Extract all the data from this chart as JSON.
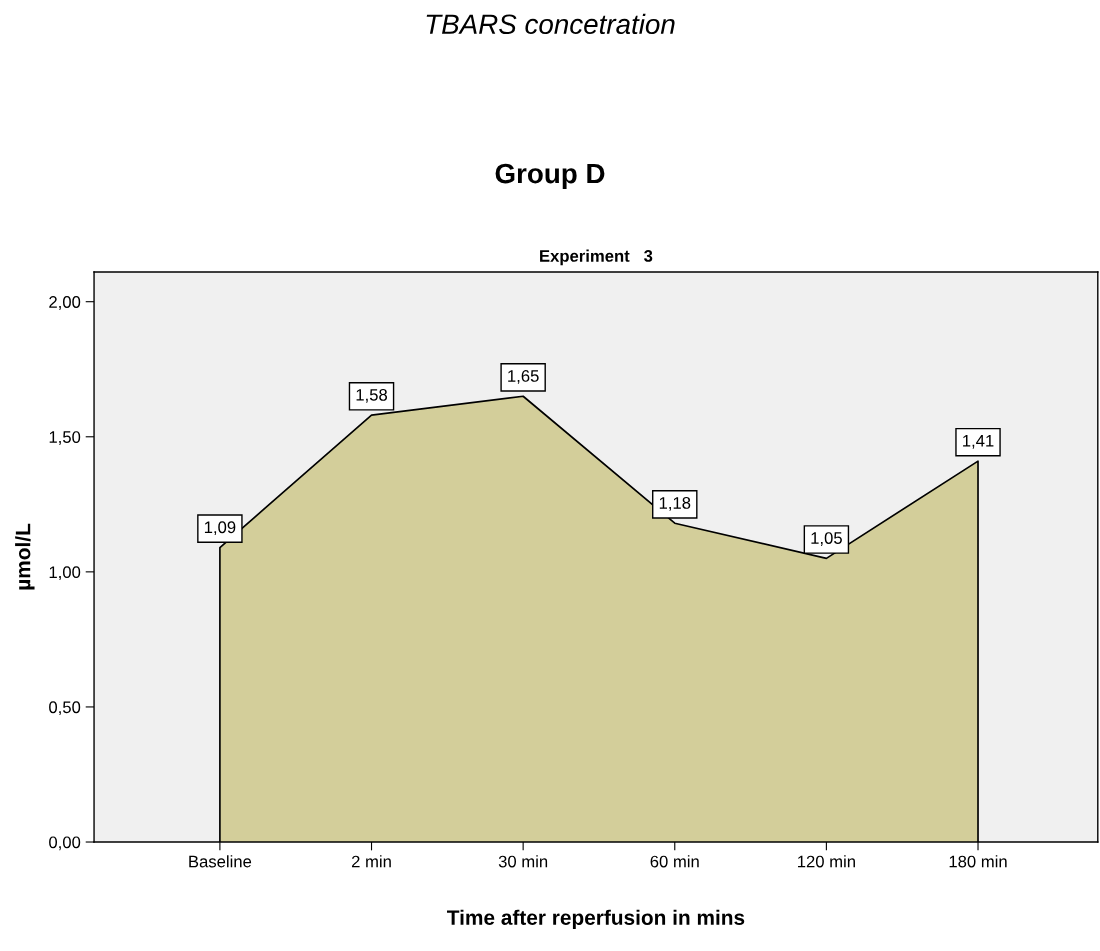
{
  "chart_data": {
    "type": "area",
    "title": "TBARS concetration",
    "subtitle": "Group D",
    "annotations": [
      "Experiment   3"
    ],
    "xlabel": "Time after reperfusion in mins",
    "ylabel": "µmol/L",
    "categories": [
      "Baseline",
      "2 min",
      "30 min",
      "60 min",
      "120 min",
      "180 min"
    ],
    "series": [
      {
        "color": "#d3ce9a",
        "values": [
          1.09,
          1.58,
          1.65,
          1.18,
          1.05,
          1.41
        ],
        "value_labels": [
          "1,09",
          "1,58",
          "1,65",
          "1,18",
          "1,05",
          "1,41"
        ]
      }
    ],
    "ylim": [
      0,
      2.11
    ],
    "yticks": [
      {
        "value": 0,
        "label": "0,00"
      },
      {
        "value": 0.5,
        "label": "0,50"
      },
      {
        "value": 1.0,
        "label": "1,00"
      },
      {
        "value": 1.5,
        "label": "1,50"
      },
      {
        "value": 2.0,
        "label": "2,00"
      }
    ],
    "grid": false
  }
}
